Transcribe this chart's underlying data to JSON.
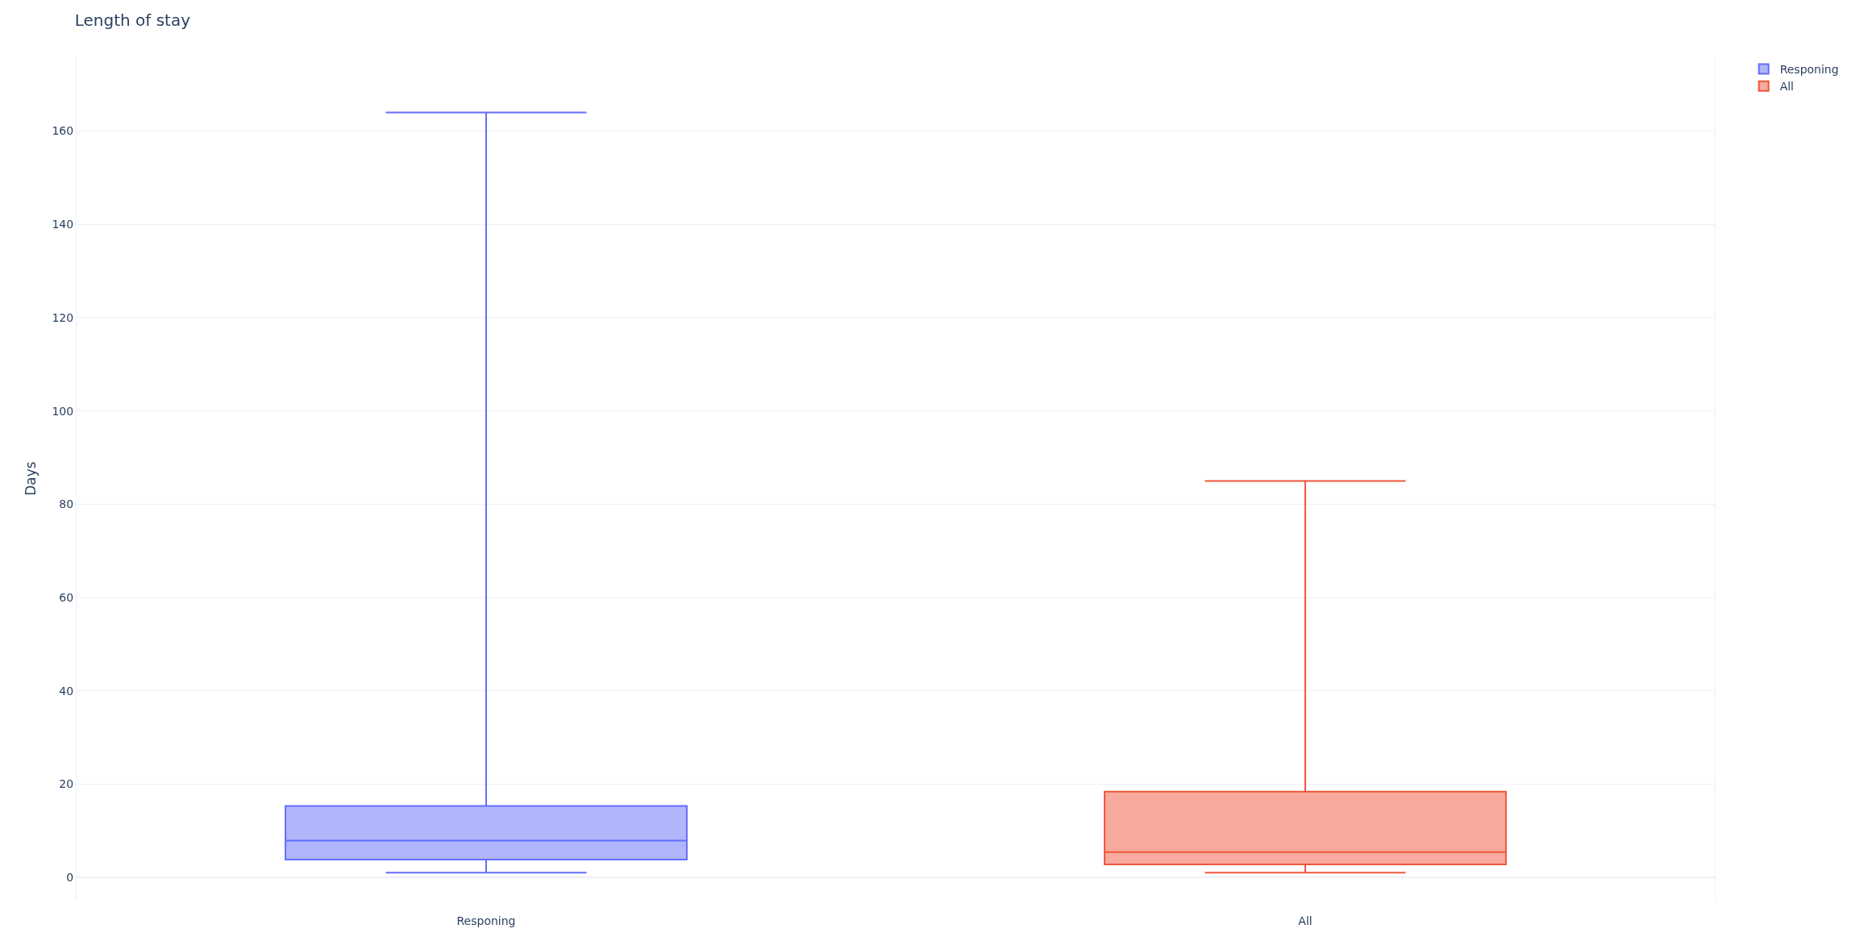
{
  "chart_data": {
    "type": "box",
    "title": "Length of stay",
    "ylabel": "Days",
    "categories": [
      "Responing",
      "All"
    ],
    "series": [
      {
        "name": "Responing",
        "color": "#636efa",
        "boxes": [
          {
            "low": 1,
            "q1": 3.8,
            "median": 7.9,
            "q3": 15.3,
            "high": 164
          },
          null
        ]
      },
      {
        "name": "All",
        "color": "#ef553b",
        "boxes": [
          null,
          {
            "low": 1,
            "q1": 2.8,
            "median": 5.4,
            "q3": 18.4,
            "high": 85
          }
        ]
      }
    ],
    "ylim": [
      -5,
      176
    ],
    "yticks": [
      0,
      20,
      40,
      60,
      80,
      100,
      120,
      140,
      160
    ],
    "grid": "y",
    "legend": "top right"
  }
}
